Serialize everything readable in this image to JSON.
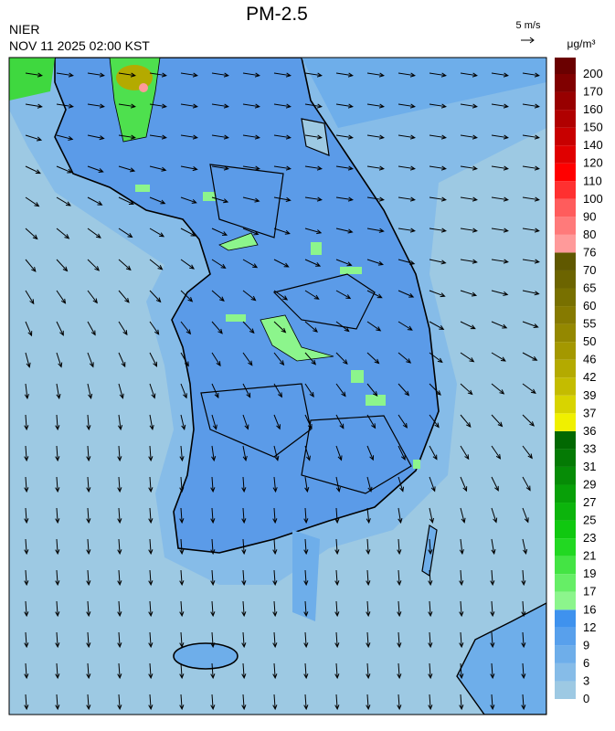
{
  "header": {
    "title": "PM-2.5",
    "agency": "NIER",
    "timestamp": "NOV 11 2025 02:00 KST"
  },
  "wind_scale": {
    "label": "5 m/s"
  },
  "colorbar": {
    "unit": "μg/m³",
    "ticks": [
      0,
      3,
      6,
      9,
      12,
      16,
      17,
      19,
      21,
      23,
      25,
      27,
      29,
      31,
      33,
      36,
      37,
      39,
      42,
      46,
      50,
      55,
      60,
      65,
      70,
      76,
      80,
      90,
      100,
      110,
      120,
      140,
      150,
      160,
      170,
      200
    ],
    "colors": [
      "#9dc9e3",
      "#86bce8",
      "#6eaeea",
      "#58a0ec",
      "#3f92ee",
      "#8cf58c",
      "#66ee66",
      "#44e444",
      "#22d822",
      "#10c810",
      "#0cb40c",
      "#08a008",
      "#068c06",
      "#047a04",
      "#026802",
      "#f0f000",
      "#d8d400",
      "#c4bc00",
      "#b4aa00",
      "#a49800",
      "#948800",
      "#867a00",
      "#787000",
      "#6c6400",
      "#605800",
      "#ff9a9a",
      "#ff7a7a",
      "#ff5c5c",
      "#ff3030",
      "#ff0000",
      "#e00000",
      "#c80000",
      "#b00000",
      "#980000",
      "#800000",
      "#6a0000"
    ]
  }
}
